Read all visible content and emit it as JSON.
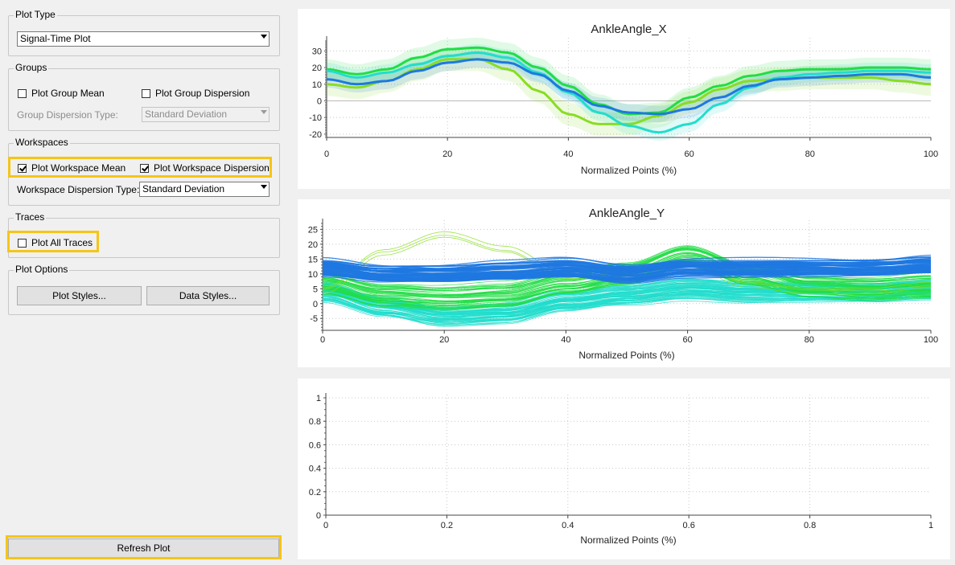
{
  "plot_type": {
    "title": "Plot Type",
    "selected": "Signal-Time Plot"
  },
  "groups": {
    "title": "Groups",
    "plot_group_mean": {
      "label": "Plot Group Mean",
      "checked": false
    },
    "plot_group_dispersion": {
      "label": "Plot Group Dispersion",
      "checked": false
    },
    "dispersion_type_label": "Group Dispersion Type:",
    "dispersion_type_value": "Standard Deviation"
  },
  "workspaces": {
    "title": "Workspaces",
    "plot_workspace_mean": {
      "label": "Plot Workspace Mean",
      "checked": true
    },
    "plot_workspace_dispersion": {
      "label": "Plot Workspace Dispersion",
      "checked": true
    },
    "dispersion_type_label": "Workspace Dispersion Type:",
    "dispersion_type_value": "Standard Deviation"
  },
  "traces": {
    "title": "Traces",
    "plot_all_traces": {
      "label": "Plot All Traces",
      "checked": false
    }
  },
  "plot_options": {
    "title": "Plot Options",
    "plot_styles_button": "Plot Styles...",
    "data_styles_button": "Data Styles..."
  },
  "refresh_button": "Refresh Plot",
  "colors": {
    "highlight": "#f5c518",
    "blue": "#1f78e0",
    "green": "#22dd44",
    "lime": "#88dd22",
    "cyan": "#22ddcc"
  },
  "chart_data": [
    {
      "type": "line",
      "title": "AnkleAngle_X",
      "xlabel": "Normalized Points (%)",
      "ylabel": "",
      "xlim": [
        0,
        100
      ],
      "ylim": [
        -22,
        36
      ],
      "x_ticks": [
        "0",
        "20",
        "40",
        "60",
        "80",
        "100"
      ],
      "y_ticks": [
        "30",
        "20",
        "10",
        "0",
        "-10",
        "-20"
      ],
      "x": [
        0,
        5,
        10,
        15,
        20,
        25,
        30,
        35,
        40,
        45,
        50,
        55,
        60,
        65,
        70,
        75,
        80,
        85,
        90,
        95,
        100
      ],
      "series": [
        {
          "color": "#22dd44",
          "values": [
            19,
            16,
            19,
            26,
            31,
            32,
            29,
            20,
            9,
            -2,
            -8,
            -7,
            2,
            9,
            15,
            18,
            19,
            19,
            20,
            20,
            19
          ]
        },
        {
          "color": "#88dd22",
          "values": [
            10,
            8,
            12,
            19,
            25,
            25,
            19,
            6,
            -8,
            -14,
            -14,
            -9,
            -1,
            7,
            12,
            13,
            14,
            14,
            14,
            12,
            10
          ]
        },
        {
          "color": "#22ddcc",
          "values": [
            18,
            14,
            17,
            22,
            27,
            29,
            26,
            17,
            5,
            -7,
            -15,
            -19,
            -14,
            -2,
            8,
            14,
            16,
            17,
            18,
            18,
            17
          ]
        },
        {
          "color": "#1f78e0",
          "values": [
            13,
            10,
            12,
            18,
            23,
            25,
            23,
            16,
            6,
            -3,
            -7,
            -8,
            -5,
            2,
            9,
            13,
            14,
            15,
            16,
            16,
            14
          ]
        }
      ],
      "grid": true,
      "legend": "none"
    },
    {
      "type": "line",
      "title": "AnkleAngle_Y",
      "xlabel": "Normalized Points (%)",
      "ylabel": "",
      "xlim": [
        0,
        100
      ],
      "ylim": [
        -9,
        27
      ],
      "x_ticks": [
        "0",
        "20",
        "40",
        "60",
        "80",
        "100"
      ],
      "y_ticks": [
        "25",
        "20",
        "15",
        "10",
        "5",
        "0",
        "-5"
      ],
      "x": [
        0,
        10,
        20,
        30,
        40,
        50,
        60,
        70,
        80,
        90,
        100
      ],
      "series": [
        {
          "color": "#1f78e0",
          "values": [
            12,
            10,
            10,
            11,
            12,
            10,
            12,
            12,
            12,
            12,
            13
          ]
        },
        {
          "color": "#22dd44",
          "values": [
            7,
            3,
            2,
            3,
            7,
            10,
            16,
            10,
            6,
            5,
            6
          ]
        },
        {
          "color": "#22ddcc",
          "values": [
            4,
            -1,
            -4,
            -3,
            1,
            3,
            5,
            4,
            4,
            4,
            5
          ]
        },
        {
          "color": "#88dd22",
          "values": [
            4,
            17,
            23,
            18,
            9,
            8,
            13,
            6,
            4,
            4,
            6
          ]
        }
      ],
      "grid": true,
      "legend": "none"
    },
    {
      "type": "line",
      "title": "",
      "xlabel": "Normalized Points (%)",
      "ylabel": "",
      "xlim": [
        0,
        1
      ],
      "ylim": [
        0,
        1
      ],
      "x_ticks": [
        "0",
        "0.2",
        "0.4",
        "0.6",
        "0.8",
        "1"
      ],
      "y_ticks": [
        "1",
        "0.8",
        "0.6",
        "0.4",
        "0.2",
        "0"
      ],
      "series": [],
      "grid": true,
      "legend": "none"
    }
  ]
}
